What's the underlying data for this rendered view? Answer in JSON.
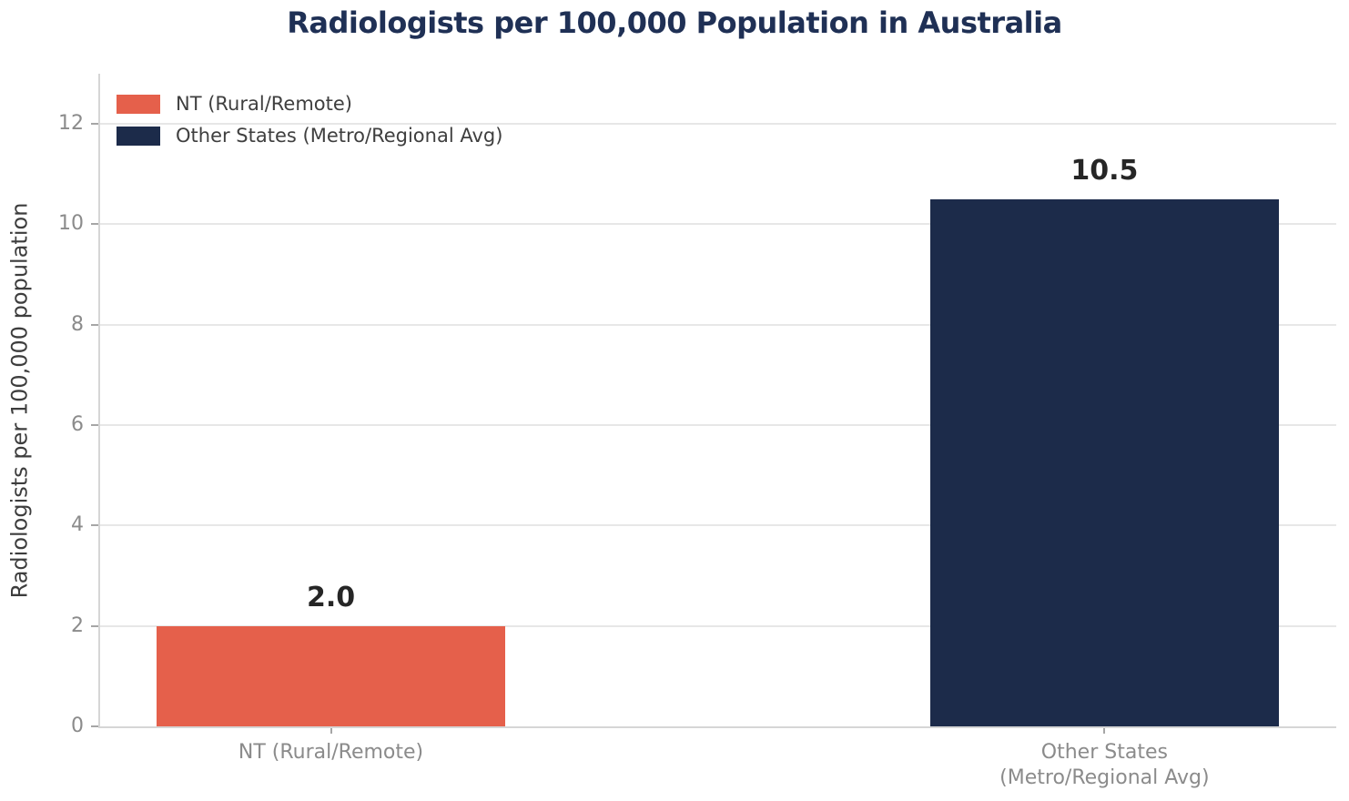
{
  "chart_data": {
    "type": "bar",
    "title": "Radiologists per 100,000 Population in Australia",
    "xlabel": "",
    "ylabel": "Radiologists per 100,000 population",
    "categories": [
      "NT (Rural/Remote)",
      "Other States\n(Metro/Regional Avg)"
    ],
    "values": [
      2.0,
      10.5
    ],
    "value_labels": [
      "2.0",
      "10.5"
    ],
    "bar_colors": [
      "#e5604b",
      "#1c2b4a"
    ],
    "ylim": [
      0,
      13
    ],
    "yticks": [
      0,
      2,
      4,
      6,
      8,
      10,
      12
    ],
    "grid": "horizontal",
    "legend": {
      "position": "upper-left",
      "frame": false,
      "entries": [
        {
          "label": "NT (Rural/Remote)",
          "color": "#e5604b"
        },
        {
          "label": "Other States (Metro/Regional Avg)",
          "color": "#1c2b4a"
        }
      ]
    }
  },
  "colors": {
    "background": "#ffffff",
    "title": "#1f3055",
    "axis_label": "#3d3d3d",
    "tick_label": "#8b8b8b",
    "tick": "#a6a6a6",
    "legend_text": "#3f3f3f",
    "value_label": "#262626",
    "grid": "#e7e7e7",
    "spine": "#d6d6d6"
  }
}
